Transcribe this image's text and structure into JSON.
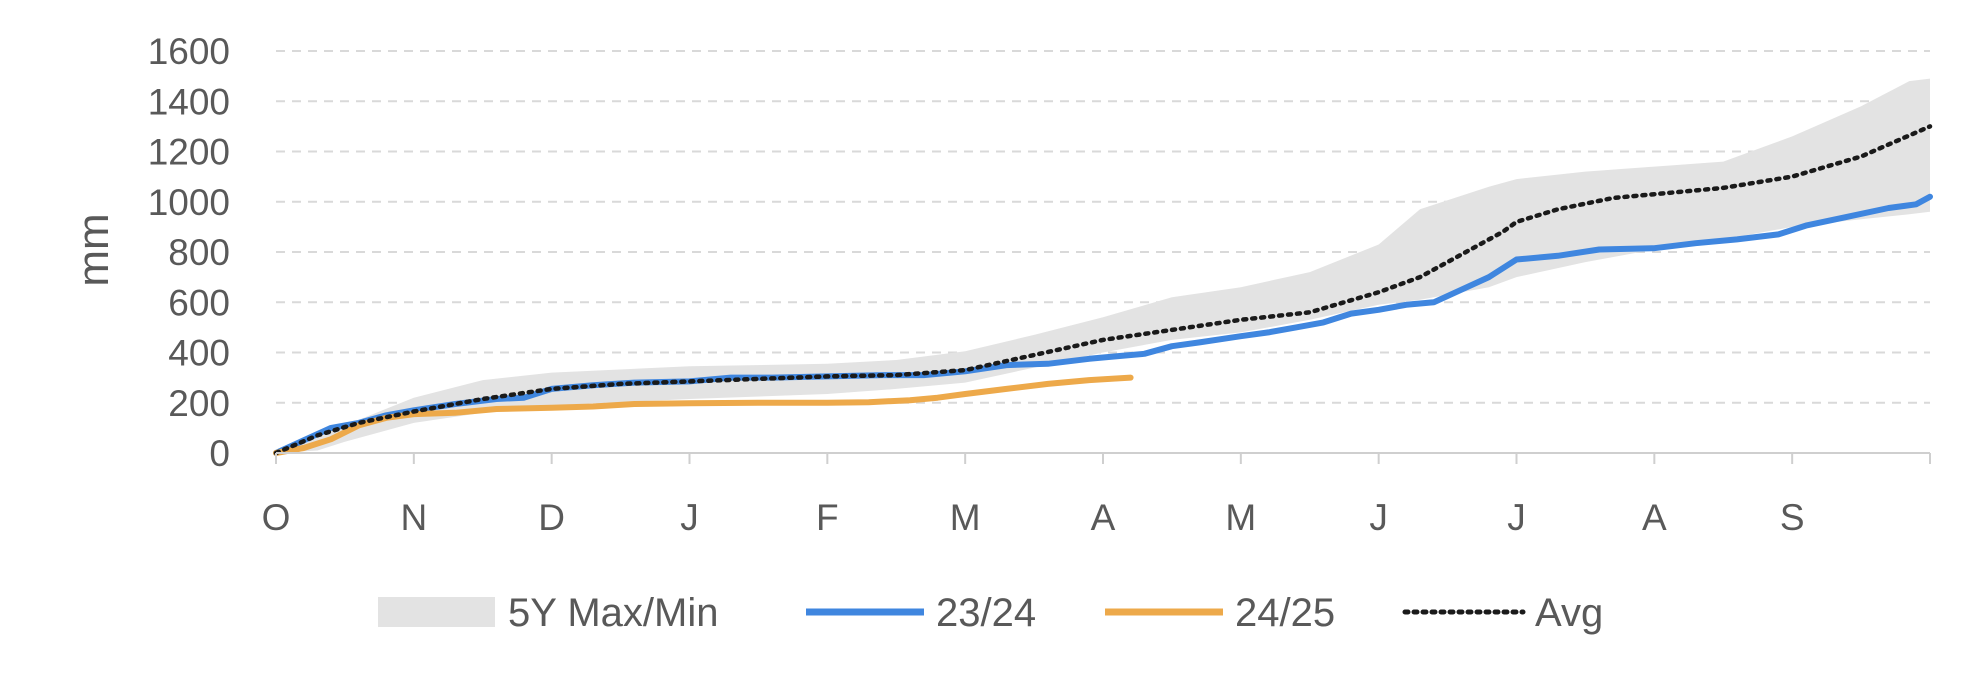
{
  "chart_data": {
    "type": "line",
    "ylabel": "mm",
    "ylim": [
      0,
      1600
    ],
    "yticks": [
      0,
      200,
      400,
      600,
      800,
      1000,
      1200,
      1400,
      1600
    ],
    "x_tick_labels": [
      "O",
      "N",
      "D",
      "J",
      "F",
      "M",
      "A",
      "M",
      "J",
      "J",
      "A",
      "S"
    ],
    "x_month_index_range": [
      0,
      12
    ],
    "grid": true,
    "legend_position": "bottom",
    "band": {
      "name": "5Y Max/Min",
      "color": "#e3e3e3",
      "x": [
        0,
        0.3,
        0.5,
        1,
        1.5,
        2,
        3,
        4,
        4.5,
        5,
        5.5,
        6,
        6.5,
        7,
        7.5,
        8,
        8.3,
        8.8,
        9,
        9.5,
        10,
        10.5,
        11,
        11.5,
        11.85,
        12
      ],
      "max": [
        0,
        60,
        110,
        220,
        290,
        320,
        345,
        355,
        370,
        405,
        470,
        540,
        620,
        660,
        720,
        830,
        970,
        1060,
        1090,
        1120,
        1140,
        1160,
        1260,
        1380,
        1480,
        1490
      ],
      "min": [
        0,
        10,
        45,
        120,
        160,
        190,
        215,
        235,
        255,
        280,
        340,
        400,
        450,
        480,
        530,
        590,
        610,
        660,
        700,
        760,
        810,
        850,
        900,
        930,
        950,
        960
      ]
    },
    "series": [
      {
        "name": "23/24",
        "color": "#3f86df",
        "x": [
          0,
          0.2,
          0.4,
          0.6,
          0.8,
          1,
          1.3,
          1.6,
          1.8,
          2,
          2.3,
          2.6,
          3,
          3.3,
          3.6,
          4,
          4.4,
          4.7,
          5,
          5.3,
          5.6,
          5.9,
          6.1,
          6.3,
          6.5,
          6.7,
          7,
          7.2,
          7.4,
          7.6,
          7.8,
          8,
          8.2,
          8.4,
          8.6,
          8.8,
          9,
          9.3,
          9.6,
          10,
          10.3,
          10.6,
          10.9,
          11.1,
          11.4,
          11.7,
          11.9,
          12
        ],
        "y": [
          0,
          50,
          100,
          120,
          150,
          170,
          195,
          215,
          220,
          255,
          270,
          280,
          285,
          300,
          300,
          305,
          310,
          310,
          325,
          350,
          355,
          375,
          385,
          395,
          425,
          440,
          465,
          480,
          500,
          520,
          555,
          570,
          590,
          600,
          650,
          700,
          770,
          785,
          810,
          815,
          835,
          850,
          870,
          905,
          940,
          975,
          990,
          1020
        ]
      },
      {
        "name": "24/25",
        "color": "#eda94a",
        "x": [
          0,
          0.2,
          0.4,
          0.6,
          0.8,
          1,
          1.3,
          1.6,
          2,
          2.3,
          2.6,
          3,
          3.5,
          4,
          4.3,
          4.6,
          4.8,
          5,
          5.3,
          5.6,
          5.9,
          6.2
        ],
        "y": [
          0,
          20,
          55,
          110,
          140,
          155,
          160,
          175,
          180,
          185,
          195,
          198,
          200,
          200,
          202,
          210,
          220,
          235,
          255,
          275,
          290,
          300
        ]
      },
      {
        "name": "Avg",
        "color": "#1a1a1a",
        "dashed": true,
        "x": [
          0,
          0.3,
          0.6,
          1,
          1.5,
          2,
          2.5,
          3,
          3.5,
          4,
          4.5,
          5,
          5.5,
          6,
          6.5,
          7,
          7.5,
          8,
          8.3,
          8.6,
          8.9,
          9,
          9.3,
          9.7,
          10,
          10.5,
          11,
          11.5,
          12
        ],
        "y": [
          0,
          70,
          120,
          165,
          215,
          255,
          275,
          285,
          295,
          305,
          310,
          330,
          390,
          450,
          490,
          530,
          560,
          640,
          700,
          790,
          880,
          920,
          970,
          1015,
          1030,
          1055,
          1100,
          1180,
          1300
        ]
      }
    ]
  }
}
